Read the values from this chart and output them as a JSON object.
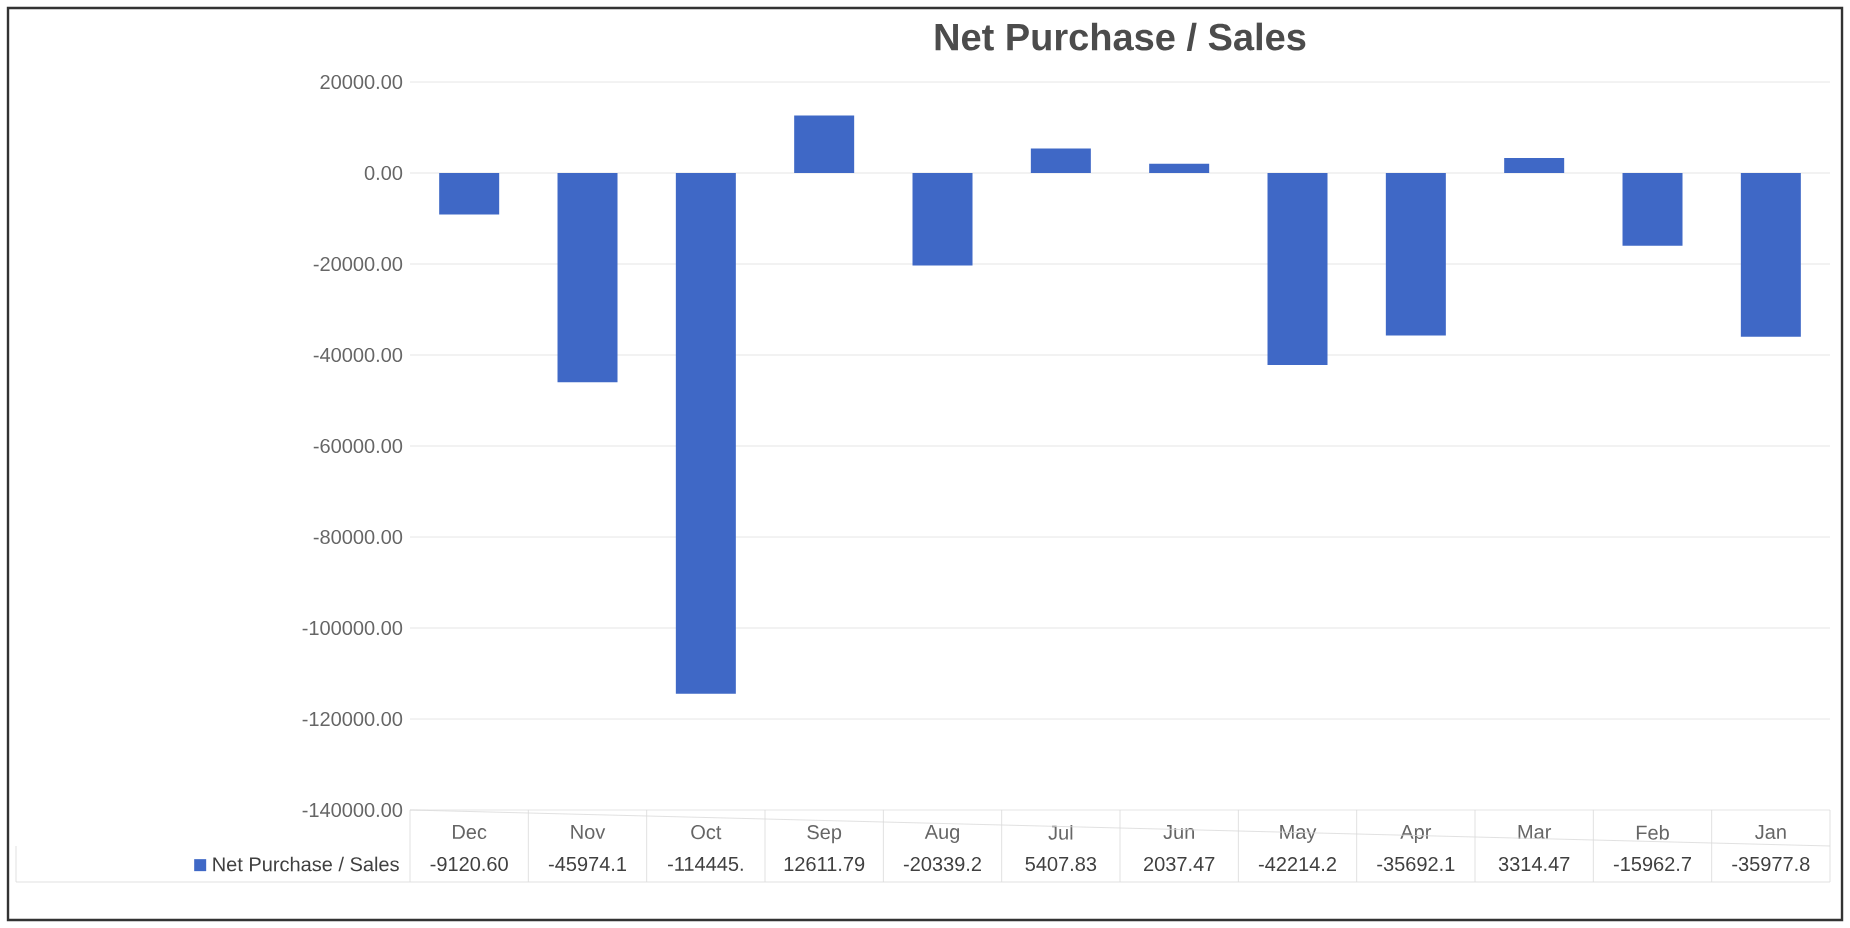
{
  "chart_data": {
    "type": "bar",
    "title": "Net Purchase / Sales",
    "categories": [
      "Dec",
      "Nov",
      "Oct",
      "Sep",
      "Aug",
      "Jul",
      "Jun",
      "May",
      "Apr",
      "Mar",
      "Feb",
      "Jan"
    ],
    "series": [
      {
        "name": "Net Purchase / Sales",
        "color": "#3f68c6",
        "values": [
          -9120.6,
          -45974.1,
          -114445,
          12611.79,
          -20339.2,
          5407.83,
          2037.47,
          -42214.2,
          -35692.1,
          3314.47,
          -15962.7,
          -35977.8
        ],
        "value_labels": [
          "-9120.60",
          "-45974.1",
          "-114445.",
          "12611.79",
          "-20339.2",
          "5407.83",
          "2037.47",
          "-42214.2",
          "-35692.1",
          "3314.47",
          "-15962.7",
          "-35977.8"
        ]
      }
    ],
    "ylim": [
      -140000,
      20000
    ],
    "yticks": [
      {
        "value": -140000,
        "label": "-140000.00"
      },
      {
        "value": -120000,
        "label": "-120000.00"
      },
      {
        "value": -100000,
        "label": "-100000.00"
      },
      {
        "value": -80000,
        "label": "-80000.00"
      },
      {
        "value": -60000,
        "label": "-60000.00"
      },
      {
        "value": -40000,
        "label": "-40000.00"
      },
      {
        "value": -20000,
        "label": "-20000.00"
      },
      {
        "value": 0,
        "label": "0.00"
      },
      {
        "value": 20000,
        "label": "20000.00"
      }
    ],
    "grid": "y",
    "legend": "bottom"
  }
}
